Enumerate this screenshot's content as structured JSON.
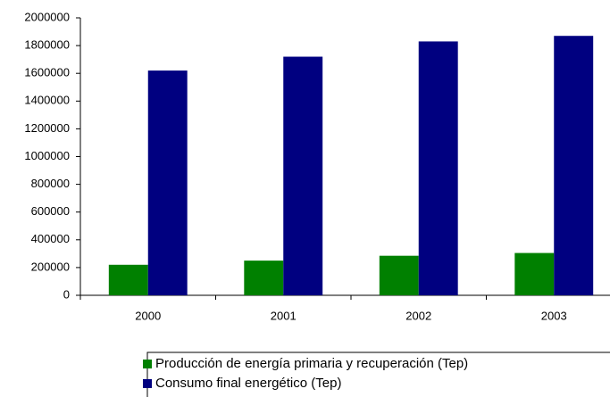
{
  "chart_data": {
    "type": "bar",
    "categories": [
      "2000",
      "2001",
      "2002",
      "2003"
    ],
    "series": [
      {
        "name": "Producción de energía primaria y recuperación (Tep)",
        "color": "#008000",
        "values": [
          220000,
          250000,
          285000,
          305000
        ]
      },
      {
        "name": "Consumo final energético (Tep)",
        "color": "#000080",
        "values": [
          1620000,
          1720000,
          1830000,
          1870000
        ]
      }
    ],
    "ylim": [
      0,
      2000000
    ],
    "yticks": [
      0,
      200000,
      400000,
      600000,
      800000,
      1000000,
      1200000,
      1400000,
      1600000,
      1800000,
      2000000
    ],
    "grid": false
  }
}
